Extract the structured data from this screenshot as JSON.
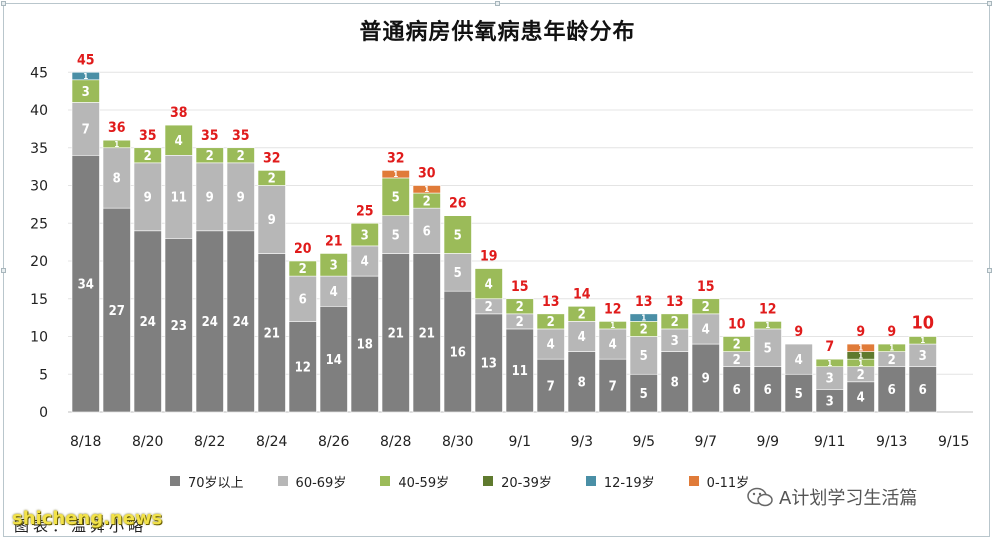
{
  "chart_data": {
    "type": "bar",
    "stacked": true,
    "title": "普通病房供氧病患年龄分布",
    "xlabel": "",
    "ylabel": "",
    "ylim": [
      0,
      45
    ],
    "yticks": [
      0,
      5,
      10,
      15,
      20,
      25,
      30,
      35,
      40,
      45
    ],
    "grid": true,
    "legend_position": "bottom",
    "categories": [
      "8/18",
      "8/19",
      "8/20",
      "8/21",
      "8/22",
      "8/23",
      "8/24",
      "8/25",
      "8/26",
      "8/27",
      "8/28",
      "8/29",
      "8/30",
      "8/31",
      "9/1",
      "9/2",
      "9/3",
      "9/4",
      "9/5",
      "9/6",
      "9/7",
      "9/8",
      "9/9",
      "9/10",
      "9/11",
      "9/12",
      "9/13",
      "9/14",
      "9/15"
    ],
    "xtick_labels": [
      "8/18",
      "8/20",
      "8/22",
      "8/24",
      "8/26",
      "8/28",
      "8/30",
      "9/1",
      "9/3",
      "9/5",
      "9/7",
      "9/9",
      "9/11",
      "9/13",
      "9/15"
    ],
    "series": [
      {
        "name": "70岁以上",
        "color": "#7f7f7f",
        "label_color": "#ffffff",
        "values": [
          34,
          27,
          24,
          23,
          24,
          24,
          21,
          12,
          14,
          18,
          21,
          21,
          16,
          13,
          11,
          7,
          8,
          7,
          5,
          8,
          9,
          6,
          6,
          5,
          3,
          4,
          6,
          6,
          null
        ]
      },
      {
        "name": "60-69岁",
        "color": "#b7b7b7",
        "label_color": "#ffffff",
        "values": [
          7,
          8,
          9,
          11,
          9,
          9,
          9,
          6,
          4,
          4,
          5,
          6,
          5,
          2,
          2,
          4,
          4,
          4,
          5,
          3,
          4,
          2,
          5,
          4,
          3,
          2,
          2,
          3,
          null
        ]
      },
      {
        "name": "40-59岁",
        "color": "#9bbb59",
        "label_color": "#ffffff",
        "values": [
          3,
          1,
          2,
          4,
          2,
          2,
          2,
          2,
          3,
          3,
          5,
          2,
          5,
          4,
          2,
          2,
          2,
          1,
          2,
          2,
          2,
          2,
          1,
          0,
          1,
          1,
          1,
          1,
          null
        ]
      },
      {
        "name": "20-39岁",
        "color": "#5f7a2e",
        "label_color": "#ffffff",
        "values": [
          0,
          0,
          0,
          0,
          0,
          0,
          0,
          0,
          0,
          0,
          0,
          0,
          0,
          0,
          0,
          0,
          0,
          0,
          0,
          0,
          0,
          0,
          0,
          0,
          0,
          1,
          0,
          0,
          null
        ]
      },
      {
        "name": "12-19岁",
        "color": "#4a8fa6",
        "label_color": "#ffffff",
        "values": [
          1,
          0,
          0,
          0,
          0,
          0,
          0,
          0,
          0,
          0,
          0,
          0,
          0,
          0,
          0,
          0,
          0,
          0,
          1,
          0,
          0,
          0,
          0,
          0,
          0,
          0,
          0,
          0,
          null
        ]
      },
      {
        "name": "0-11岁",
        "color": "#e07b39",
        "label_color": "#ffffff",
        "values": [
          0,
          0,
          0,
          0,
          0,
          0,
          0,
          0,
          0,
          0,
          1,
          1,
          0,
          0,
          0,
          0,
          0,
          0,
          0,
          0,
          0,
          0,
          0,
          0,
          0,
          1,
          0,
          0,
          null
        ]
      }
    ],
    "totals": [
      45,
      36,
      35,
      38,
      35,
      35,
      32,
      20,
      21,
      25,
      32,
      30,
      26,
      19,
      15,
      13,
      14,
      12,
      13,
      13,
      15,
      10,
      12,
      9,
      7,
      9,
      9,
      10,
      null
    ],
    "total_label_color": "#e01b1b"
  },
  "legend": {
    "items": [
      {
        "label": "70岁以上",
        "color": "#7f7f7f"
      },
      {
        "label": "60-69岁",
        "color": "#b7b7b7"
      },
      {
        "label": "40-59岁",
        "color": "#9bbb59"
      },
      {
        "label": "20-39岁",
        "color": "#5f7a2e"
      },
      {
        "label": "12-19岁",
        "color": "#4a8fa6"
      },
      {
        "label": "0-11岁",
        "color": "#e07b39"
      }
    ]
  },
  "watermark": {
    "text": "A计划学习生活篇",
    "icon": "wechat-icon"
  },
  "site_watermark": "shicheng.news",
  "source": "图表：温舜小略"
}
